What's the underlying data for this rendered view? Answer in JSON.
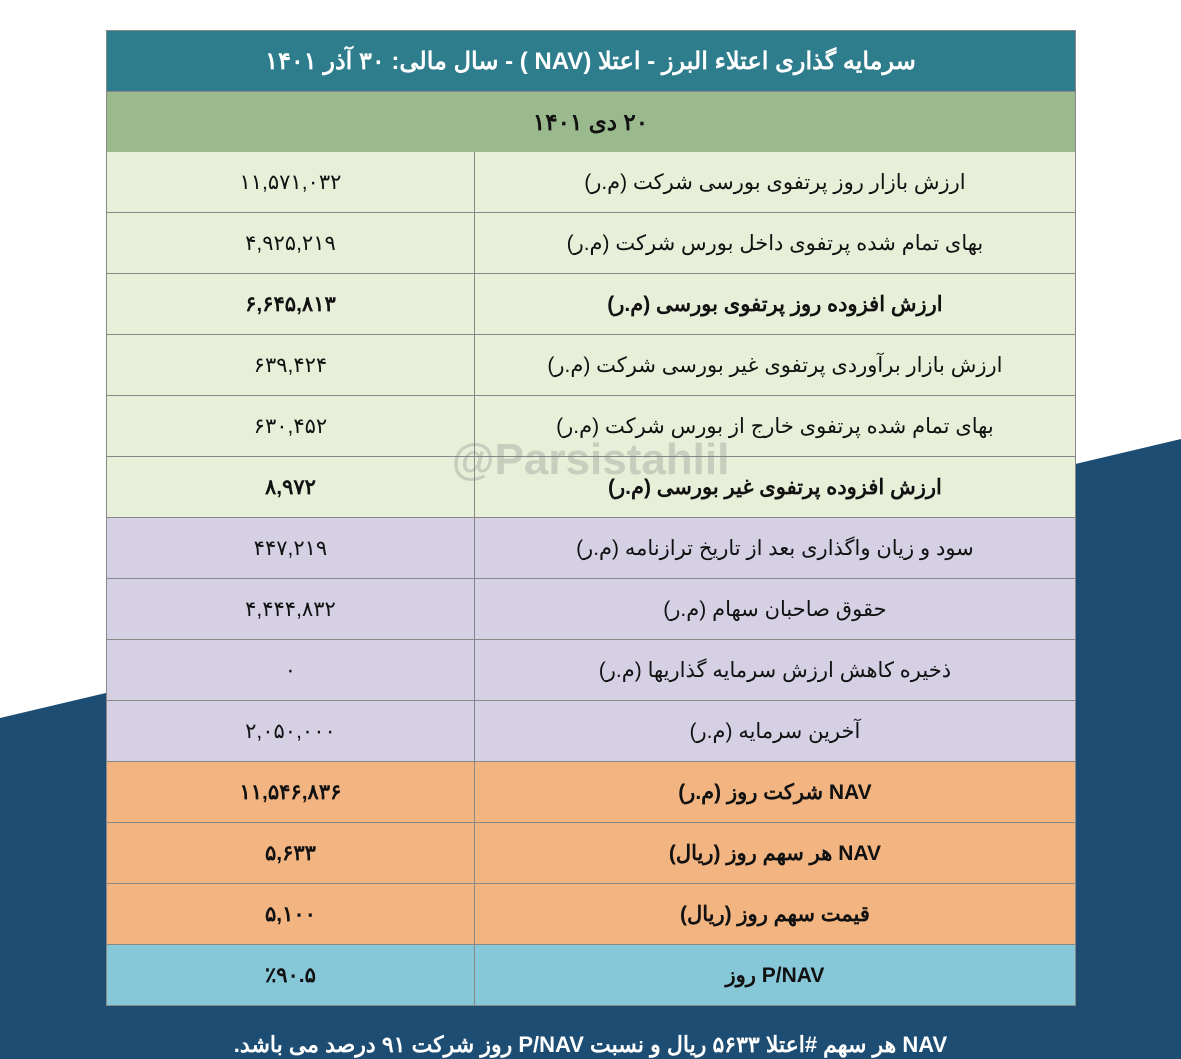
{
  "header": {
    "title": "سرمایه گذاری اعتلاء البرز - اعتلا (NAV ) - سال مالی: ۳۰ آذر ۱۴۰۱",
    "date": "۲۰ دی ۱۴۰۱"
  },
  "watermark": "@Parsistahlil",
  "colors": {
    "header_bg": "#2e7d8c",
    "header_fg": "#ffffff",
    "date_bg": "#9ab98c",
    "green_bg": "#e8efd9",
    "purple_bg": "#d6d0e4",
    "orange_bg": "#f2b480",
    "blue_bg": "#87c8d8",
    "border": "#888888",
    "page_wedge": "#1e4d73",
    "footer_fg": "#ffffff"
  },
  "rows": [
    {
      "label": "ارزش بازار روز پرتفوی بورسی شرکت (م.ر)",
      "value": "۱۱,۵۷۱,۰۳۲",
      "section": "green",
      "bold": false
    },
    {
      "label": "بهای تمام شده پرتفوی داخل بورس شرکت (م.ر)",
      "value": "۴,۹۲۵,۲۱۹",
      "section": "green",
      "bold": false
    },
    {
      "label": "ارزش افزوده روز پرتفوی بورسی (م.ر)",
      "value": "۶,۶۴۵,۸۱۳",
      "section": "green",
      "bold": true
    },
    {
      "label": "ارزش بازار برآوردی پرتفوی غیر بورسی شرکت (م.ر)",
      "value": "۶۳۹,۴۲۴",
      "section": "green",
      "bold": false
    },
    {
      "label": "بهای تمام شده پرتفوی خارج از بورس شرکت (م.ر)",
      "value": "۶۳۰,۴۵۲",
      "section": "green",
      "bold": false
    },
    {
      "label": "ارزش افزوده پرتفوی غیر بورسی (م.ر)",
      "value": "۸,۹۷۲",
      "section": "green",
      "bold": true
    },
    {
      "label": "سود و زیان واگذاری بعد از تاریخ ترازنامه (م.ر)",
      "value": "۴۴۷,۲۱۹",
      "section": "purple",
      "bold": false
    },
    {
      "label": "حقوق صاحبان سهام (م.ر)",
      "value": "۴,۴۴۴,۸۳۲",
      "section": "purple",
      "bold": false
    },
    {
      "label": "ذخیره کاهش ارزش سرمایه گذاریها (م.ر)",
      "value": "۰",
      "section": "purple",
      "bold": false
    },
    {
      "label": "آخرین سرمایه (م.ر)",
      "value": "۲,۰۵۰,۰۰۰",
      "section": "purple",
      "bold": false
    },
    {
      "label": "NAV  شرکت روز (م.ر)",
      "value": "۱۱,۵۴۶,۸۳۶",
      "section": "orange",
      "bold": true
    },
    {
      "label": "NAV  هر سهم روز (ریال)",
      "value": "۵,۶۳۳",
      "section": "orange",
      "bold": true
    },
    {
      "label": "قیمت سهم روز (ریال)",
      "value": "۵,۱۰۰",
      "section": "orange",
      "bold": true
    },
    {
      "label": "P/NAV روز",
      "value": "٪۹۰.۵",
      "section": "blue",
      "bold": true
    }
  ],
  "footer": "NAV هر سهم #اعتلا ۵۶۳۳ ریال و نسبت P/NAV روز شرکت ۹۱ درصد می باشد."
}
